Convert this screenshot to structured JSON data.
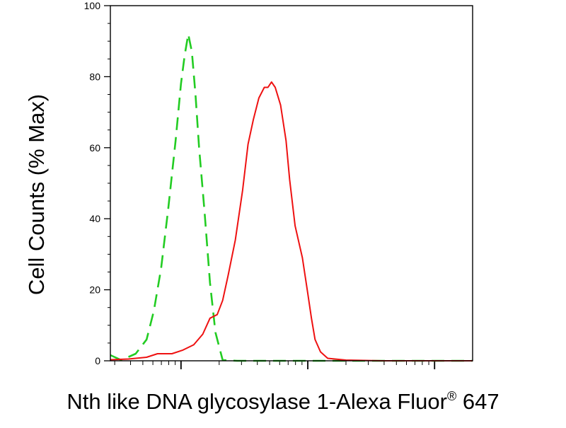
{
  "chart_data": {
    "type": "line",
    "title": "",
    "ylabel": "Cell Counts (% Max)",
    "xlabel": {
      "before": "Nth like DNA glycosylase 1-Alexa Fluor",
      "mark": "®",
      "after": " 647"
    },
    "x_scale": "log",
    "x_tick_labels": [],
    "ylim": [
      0,
      100
    ],
    "yticks": [
      0,
      20,
      40,
      60,
      80,
      100
    ],
    "grid": false,
    "legend": "none",
    "series": [
      {
        "color": "#22cc22",
        "style": "dashed",
        "points": [
          [
            0.0,
            1.6
          ],
          [
            0.03,
            0.2
          ],
          [
            0.07,
            2
          ],
          [
            0.1,
            6
          ],
          [
            0.12,
            14
          ],
          [
            0.14,
            26
          ],
          [
            0.16,
            43
          ],
          [
            0.18,
            62
          ],
          [
            0.195,
            78
          ],
          [
            0.205,
            86
          ],
          [
            0.215,
            92
          ],
          [
            0.225,
            87
          ],
          [
            0.235,
            75
          ],
          [
            0.245,
            60
          ],
          [
            0.26,
            42
          ],
          [
            0.275,
            22
          ],
          [
            0.29,
            8
          ],
          [
            0.31,
            0.2
          ],
          [
            0.35,
            0
          ],
          [
            1.0,
            0
          ]
        ]
      },
      {
        "color": "#ee1111",
        "style": "solid",
        "points": [
          [
            0.0,
            0.3
          ],
          [
            0.05,
            0.5
          ],
          [
            0.1,
            1
          ],
          [
            0.13,
            2
          ],
          [
            0.17,
            2
          ],
          [
            0.2,
            3
          ],
          [
            0.23,
            4.5
          ],
          [
            0.255,
            7.5
          ],
          [
            0.275,
            12
          ],
          [
            0.295,
            13
          ],
          [
            0.31,
            17
          ],
          [
            0.325,
            24
          ],
          [
            0.345,
            34
          ],
          [
            0.365,
            48
          ],
          [
            0.38,
            61
          ],
          [
            0.395,
            68
          ],
          [
            0.41,
            74
          ],
          [
            0.425,
            77
          ],
          [
            0.435,
            77
          ],
          [
            0.445,
            78.5
          ],
          [
            0.455,
            77
          ],
          [
            0.47,
            72
          ],
          [
            0.485,
            62
          ],
          [
            0.495,
            51
          ],
          [
            0.51,
            38
          ],
          [
            0.53,
            29
          ],
          [
            0.545,
            19
          ],
          [
            0.555,
            12
          ],
          [
            0.565,
            6
          ],
          [
            0.58,
            2.5
          ],
          [
            0.6,
            0.7
          ],
          [
            0.65,
            0.2
          ],
          [
            0.75,
            0
          ],
          [
            1.0,
            0
          ]
        ]
      }
    ]
  }
}
